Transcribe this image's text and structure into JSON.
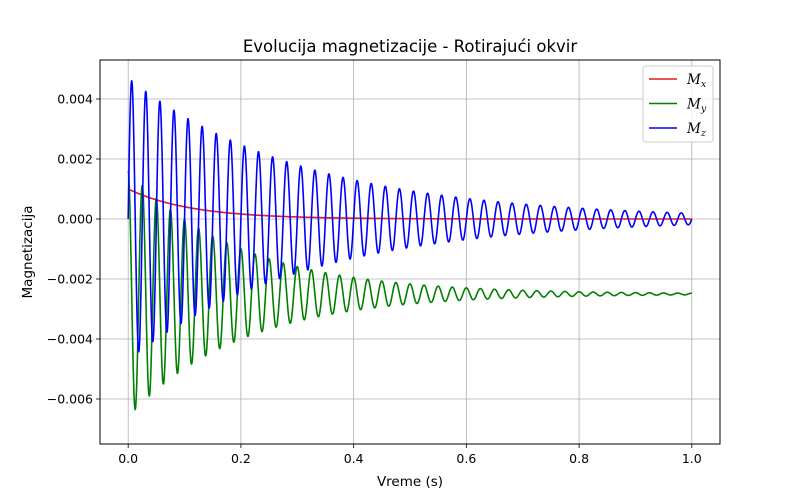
{
  "chart_data": {
    "type": "line",
    "title": "Evolucija magnetizacije - Rotirajući okvir",
    "xlabel": "Vreme (s)",
    "ylabel": "Magnetizacija",
    "xlim": [
      -0.05,
      1.05
    ],
    "ylim": [
      -0.0075,
      0.0053
    ],
    "xticks": [
      0.0,
      0.2,
      0.4,
      0.6,
      0.8,
      1.0
    ],
    "xtick_labels": [
      "0.0",
      "0.2",
      "0.4",
      "0.6",
      "0.8",
      "1.0"
    ],
    "yticks": [
      0.004,
      0.002,
      0.0,
      -0.002,
      -0.004,
      -0.006
    ],
    "ytick_labels": [
      "0.004",
      "0.002",
      "0.000",
      "−0.002",
      "−0.004",
      "−0.006"
    ],
    "grid": true,
    "legend_position": "top-right",
    "series": [
      {
        "name": "M",
        "name_sub": "x",
        "color": "#e41a1c",
        "model": {
          "kind": "exp_decay",
          "offset": 0.0,
          "amplitude": 0.001,
          "decay_rate": 9.0,
          "osc_freq": 0.0,
          "phase": 0.0
        },
        "x_range": [
          0.0,
          1.0
        ]
      },
      {
        "name": "M",
        "name_sub": "y",
        "color": "#008000",
        "model": {
          "kind": "damped_cosine",
          "offset": -0.0025,
          "amplitude": 0.0041,
          "decay_rate": 5.0,
          "osc_freq": 40.0,
          "phase": 0.0
        },
        "x_range": [
          0.0,
          1.0
        ]
      },
      {
        "name": "M",
        "name_sub": "z",
        "color": "#0000ff",
        "model": {
          "kind": "damped_sine",
          "offset": 0.0,
          "amplitude": 0.0047,
          "decay_rate": 3.2,
          "osc_freq": 40.0,
          "phase": 0.0
        },
        "x_range": [
          0.0,
          1.0
        ]
      }
    ]
  }
}
